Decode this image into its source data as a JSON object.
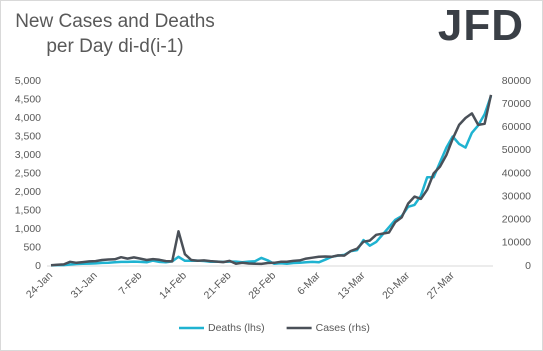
{
  "logo": "JFD",
  "chart_data": {
    "type": "line",
    "title": "New Cases and Deaths per Day di-d(i-1)",
    "categories": [
      "24-Jan",
      null,
      null,
      null,
      null,
      null,
      null,
      "31-Jan",
      null,
      null,
      null,
      null,
      null,
      null,
      "7-Feb",
      null,
      null,
      null,
      null,
      null,
      null,
      "14-Feb",
      null,
      null,
      null,
      null,
      null,
      null,
      "21-Feb",
      null,
      null,
      null,
      null,
      null,
      null,
      "28-Feb",
      null,
      null,
      null,
      null,
      null,
      null,
      "6-Mar",
      null,
      null,
      null,
      null,
      null,
      null,
      "13-Mar",
      null,
      null,
      null,
      null,
      null,
      null,
      "20-Mar",
      null,
      null,
      null,
      null,
      null,
      null,
      "27-Mar",
      null,
      null,
      null,
      null,
      null,
      null
    ],
    "series": [
      {
        "name": "Deaths (lhs)",
        "color": "#1fb3d1",
        "axis": "y",
        "values": [
          15,
          25,
          25,
          40,
          55,
          60,
          65,
          70,
          85,
          90,
          100,
          110,
          110,
          120,
          110,
          100,
          145,
          110,
          100,
          125,
          250,
          140,
          140,
          145,
          135,
          115,
          120,
          110,
          120,
          120,
          100,
          120,
          130,
          220,
          150,
          60,
          75,
          60,
          80,
          90,
          100,
          110,
          100,
          170,
          250,
          280,
          300,
          400,
          430,
          700,
          550,
          650,
          850,
          1050,
          1250,
          1350,
          1600,
          1650,
          1900,
          2400,
          2400,
          2800,
          3200,
          3500,
          3300,
          3200,
          3600,
          3800,
          4100,
          4600
        ]
      },
      {
        "name": "Cases (rhs)",
        "color": "#4a5058",
        "axis": "y2",
        "values": [
          300,
          500,
          700,
          1800,
          1400,
          1700,
          2000,
          2100,
          2600,
          2800,
          2900,
          3800,
          3200,
          3700,
          3200,
          2600,
          3000,
          2700,
          2100,
          2000,
          15000,
          5100,
          2600,
          2300,
          2400,
          2100,
          1900,
          1700,
          2200,
          1000,
          1400,
          1100,
          1000,
          900,
          1300,
          1400,
          1800,
          1800,
          2200,
          2400,
          3200,
          3600,
          4000,
          4100,
          4000,
          4600,
          4500,
          6500,
          7500,
          10500,
          11000,
          13500,
          14000,
          14500,
          19000,
          21000,
          27000,
          30000,
          29000,
          33000,
          40000,
          43000,
          48000,
          55000,
          61000,
          64000,
          66000,
          61000,
          61500,
          74000
        ]
      }
    ],
    "ylim": [
      0,
      5000
    ],
    "yticks": [
      0,
      500,
      {
        "value": 1000,
        "label": "1,000"
      },
      {
        "value": 1500,
        "label": "1,500"
      },
      {
        "value": 2000,
        "label": "2,000"
      },
      {
        "value": 2500,
        "label": "2,500"
      },
      {
        "value": 3000,
        "label": "3,000"
      },
      {
        "value": 3500,
        "label": "3,500"
      },
      {
        "value": 4000,
        "label": "4,000"
      },
      {
        "value": 4500,
        "label": "4,500"
      },
      {
        "value": 5000,
        "label": "5,000"
      }
    ],
    "y2lim": [
      0,
      80000
    ],
    "y2ticks": [
      0,
      10000,
      20000,
      30000,
      40000,
      50000,
      60000,
      70000,
      80000
    ],
    "legend": "bottom"
  }
}
